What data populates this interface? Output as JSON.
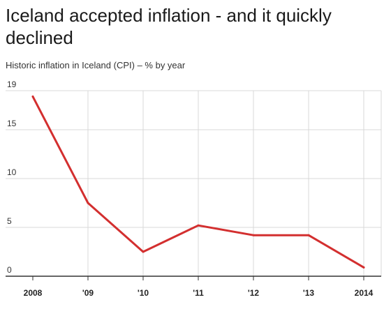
{
  "chart_data": {
    "type": "line",
    "title": "Iceland accepted inflation - and it quickly declined",
    "subtitle": "Historic inflation in Iceland (CPI) – % by year",
    "categories": [
      "2008",
      "'09",
      "'10",
      "'11",
      "'12",
      "'13",
      "2014"
    ],
    "series": [
      {
        "values": [
          18.4,
          7.5,
          2.5,
          5.2,
          4.2,
          4.2,
          0.9
        ]
      }
    ],
    "ylim": [
      0,
      19
    ],
    "yticks": [
      0,
      5,
      10,
      15,
      19
    ],
    "xlabel": "",
    "ylabel": "",
    "grid": true,
    "line_color": "#d32f2f"
  }
}
